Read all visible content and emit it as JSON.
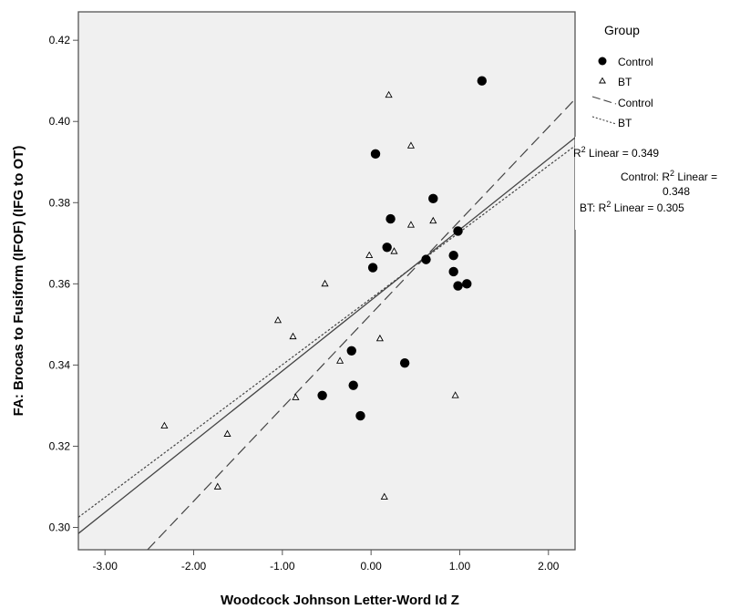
{
  "chart_data": {
    "type": "scatter",
    "xlabel": "Woodcock Johnson Letter-Word Id Z",
    "ylabel": "FA: Brocas to Fusiform (IFOF) (IFG to OT)",
    "xlim": [
      -3.3,
      2.3
    ],
    "ylim": [
      0.2945,
      0.427
    ],
    "xticks": [
      -3.0,
      -2.0,
      -1.0,
      0.0,
      1.0,
      2.0
    ],
    "xtick_labels": [
      "-3.00",
      "-2.00",
      "-1.00",
      "0.00",
      "1.00",
      "2.00"
    ],
    "yticks": [
      0.3,
      0.32,
      0.34,
      0.36,
      0.38,
      0.4,
      0.42
    ],
    "ytick_labels": [
      "0.30",
      "0.32",
      "0.34",
      "0.36",
      "0.38",
      "0.40",
      "0.42"
    ],
    "grid": false,
    "legend": {
      "title": "Group",
      "placement": "right",
      "entries": [
        {
          "label": "Control",
          "symbol": "filled-circle"
        },
        {
          "label": "BT",
          "symbol": "open-triangle"
        },
        {
          "label": "Control",
          "symbol": "long-dash-line"
        },
        {
          "label": "BT",
          "symbol": "short-dash-line"
        }
      ]
    },
    "series": [
      {
        "name": "Control",
        "marker": "filled-circle",
        "points": [
          [
            1.25,
            0.41
          ],
          [
            0.05,
            0.392
          ],
          [
            0.7,
            0.381
          ],
          [
            0.22,
            0.376
          ],
          [
            0.98,
            0.373
          ],
          [
            0.18,
            0.369
          ],
          [
            0.62,
            0.366
          ],
          [
            0.02,
            0.364
          ],
          [
            0.93,
            0.367
          ],
          [
            0.93,
            0.363
          ],
          [
            1.08,
            0.36
          ],
          [
            0.98,
            0.3595
          ],
          [
            -0.22,
            0.3435
          ],
          [
            0.38,
            0.3405
          ],
          [
            -0.2,
            0.335
          ],
          [
            -0.55,
            0.3325
          ],
          [
            -0.12,
            0.3275
          ]
        ]
      },
      {
        "name": "BT",
        "marker": "open-triangle",
        "points": [
          [
            0.2,
            0.4065
          ],
          [
            0.45,
            0.394
          ],
          [
            0.7,
            0.3755
          ],
          [
            0.45,
            0.3745
          ],
          [
            0.26,
            0.368
          ],
          [
            -0.02,
            0.367
          ],
          [
            -0.52,
            0.36
          ],
          [
            -1.05,
            0.351
          ],
          [
            -0.88,
            0.347
          ],
          [
            0.1,
            0.3465
          ],
          [
            -0.35,
            0.341
          ],
          [
            -0.85,
            0.332
          ],
          [
            0.95,
            0.3325
          ],
          [
            -2.33,
            0.325
          ],
          [
            -1.62,
            0.323
          ],
          [
            -1.73,
            0.31
          ],
          [
            0.15,
            0.3075
          ]
        ]
      }
    ],
    "fit_lines": [
      {
        "label": "Total",
        "style": "solid",
        "endpoints": [
          [
            -3.3,
            0.2985
          ],
          [
            2.3,
            0.396
          ]
        ]
      },
      {
        "label": "Control",
        "style": "long-dash",
        "endpoints": [
          [
            -2.52,
            0.2945
          ],
          [
            2.3,
            0.4055
          ]
        ]
      },
      {
        "label": "BT",
        "style": "short-dash",
        "endpoints": [
          [
            -3.3,
            0.3025
          ],
          [
            2.3,
            0.394
          ]
        ]
      }
    ],
    "annotations": {
      "total_r2_prefix": "R",
      "total_r2_sup": "2",
      "total_r2_suffix": " Linear = 0.349",
      "control_r2_prefix": "Control: R",
      "control_r2_sup": "2",
      "control_r2_suffix": " Linear =",
      "control_r2_value": "0.348",
      "bt_r2_prefix": "BT: R",
      "bt_r2_sup": "2",
      "bt_r2_suffix": " Linear = 0.305"
    }
  },
  "colors": {
    "plot_background": "#f0f0f0",
    "frame": "#555555",
    "marker": "#000000",
    "line": "#444444"
  }
}
